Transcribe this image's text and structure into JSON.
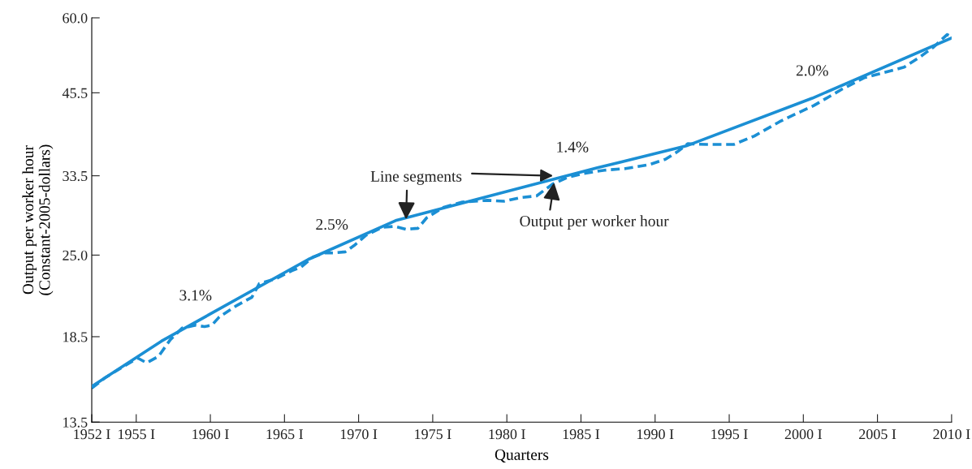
{
  "chart_data": {
    "type": "line",
    "xlabel": "Quarters",
    "ylabel": "Output per worker hour\n(Constant-2005-dollars)",
    "log": "y",
    "grid": false,
    "xlim": [
      1952,
      2010
    ],
    "ylim": [
      13.5,
      60.0
    ],
    "xticks": [
      {
        "value": 1952,
        "label": "1952 I"
      },
      {
        "value": 1955,
        "label": "1955 I"
      },
      {
        "value": 1960,
        "label": "1960 I"
      },
      {
        "value": 1965,
        "label": "1965 I"
      },
      {
        "value": 1970,
        "label": "1970 I"
      },
      {
        "value": 1975,
        "label": "1975 I"
      },
      {
        "value": 1980,
        "label": "1980 I"
      },
      {
        "value": 1985,
        "label": "1985 I"
      },
      {
        "value": 1990,
        "label": "1990 I"
      },
      {
        "value": 1995,
        "label": "1995 I"
      },
      {
        "value": 2000,
        "label": "2000 I"
      },
      {
        "value": 2005,
        "label": "2005 I"
      },
      {
        "value": 2010,
        "label": "2010 I"
      }
    ],
    "yticks": [
      {
        "value": 13.5,
        "label": "13.5"
      },
      {
        "value": 18.5,
        "label": "18.5"
      },
      {
        "value": 25.0,
        "label": "25.0"
      },
      {
        "value": 33.5,
        "label": "33.5"
      },
      {
        "value": 45.5,
        "label": "45.5"
      },
      {
        "value": 60.0,
        "label": "60.0"
      }
    ],
    "series": [
      {
        "color": "#1b8fd4",
        "line_style": "dashed",
        "x": [
          1952.0,
          1952.9,
          1954.0,
          1955.1,
          1955.7,
          1956.5,
          1957.3,
          1958.1,
          1959.0,
          1959.6,
          1960.1,
          1960.6,
          1961.7,
          1962.8,
          1963.3,
          1964.4,
          1965.5,
          1966.1,
          1966.9,
          1967.7,
          1968.3,
          1969.1,
          1969.7,
          1970.5,
          1971.6,
          1972.4,
          1973.2,
          1974.0,
          1974.6,
          1975.7,
          1977.0,
          1978.7,
          1979.8,
          1980.9,
          1982.0,
          1983.1,
          1984.1,
          1985.2,
          1986.6,
          1988.0,
          1989.6,
          1990.7,
          1991.5,
          1992.2,
          1993.5,
          1995.3,
          1996.7,
          1998.4,
          1999.5,
          2000.7,
          2002.6,
          2004.1,
          2006.1,
          2006.8,
          2007.9,
          2008.8,
          2009.7,
          2010.0
        ],
        "values": [
          15.3,
          15.9,
          16.5,
          17.1,
          16.8,
          17.2,
          18.3,
          19.1,
          19.3,
          19.2,
          19.3,
          19.9,
          20.7,
          21.4,
          22.5,
          22.9,
          23.6,
          23.9,
          24.8,
          25.2,
          25.2,
          25.3,
          25.9,
          26.9,
          27.7,
          27.8,
          27.5,
          27.6,
          28.7,
          29.8,
          30.4,
          30.6,
          30.5,
          30.9,
          31.1,
          32.5,
          33.3,
          33.8,
          34.2,
          34.4,
          34.9,
          35.6,
          36.6,
          37.7,
          37.6,
          37.6,
          38.8,
          40.9,
          42.1,
          43.4,
          46.1,
          48.1,
          49.5,
          50.0,
          52.0,
          53.9,
          56.4,
          55.9
        ]
      },
      {
        "color": "#1b8fd4",
        "line_style": "solid",
        "x": [
          1952.0,
          1956.7,
          1966.6,
          1972.5,
          1986.1,
          1992.1,
          2000.6,
          2010.0
        ],
        "values": [
          15.4,
          18.2,
          24.6,
          28.4,
          34.5,
          37.4,
          44.6,
          55.7
        ]
      }
    ],
    "annotations": [
      {
        "text": "3.1%",
        "x": 1959.0,
        "y": 19.3
      },
      {
        "text": "2.5%",
        "x": 1968.2,
        "y": 25.6
      },
      {
        "text": "1.4%",
        "x": 1983.2,
        "y": 33.5
      },
      {
        "text": "2.0%",
        "x": 2000.6,
        "y": 44.6
      },
      {
        "text": "Line segments",
        "x": 1973.2,
        "y": 28.4
      },
      {
        "text": "Output per worker hour",
        "x": 1983.2,
        "y": 32.8
      }
    ]
  }
}
